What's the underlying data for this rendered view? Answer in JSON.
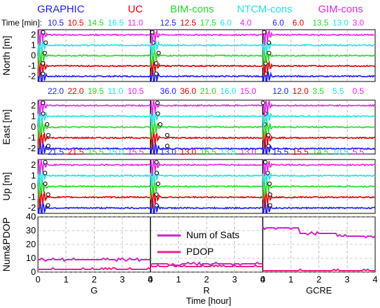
{
  "chart_data": {
    "type": "line",
    "legend": [
      {
        "name": "GRAPHIC",
        "color": "#1a1aff"
      },
      {
        "name": "UC",
        "color": "#e60000"
      },
      {
        "name": "BIM-cons",
        "color": "#22dd22"
      },
      {
        "name": "NTCM-cons",
        "color": "#22e5e5"
      },
      {
        "name": "GIM-cons",
        "color": "#ee22ee"
      }
    ],
    "time_label": "Time [min]:",
    "xlabel": "Time [hour]",
    "x_ticks": [
      0,
      1,
      2,
      3,
      4
    ],
    "xlim": [
      0,
      4
    ],
    "groups": [
      "G",
      "R",
      "GCRE"
    ],
    "panels": [
      {
        "id": "north",
        "ylabel": "North [m]",
        "ylim": [
          -2.5,
          2.5
        ],
        "yticks": [
          -2,
          -1,
          0,
          1,
          2
        ],
        "offsets": [
          -2,
          -1,
          0,
          1,
          2
        ],
        "convergence_minutes": [
          [
            "10.5",
            "10.5",
            "14.5",
            "16.5",
            "11.0"
          ],
          [
            "12.5",
            "12.5",
            "17.5",
            "6.0",
            "4.0"
          ],
          [
            "6.0",
            "6.0",
            "13.5",
            "13.0",
            "3.0"
          ]
        ]
      },
      {
        "id": "east",
        "ylabel": "East [m]",
        "ylim": [
          -2.5,
          2.5
        ],
        "yticks": [
          -2,
          -1,
          0,
          1,
          2
        ],
        "offsets": [
          -2,
          -1,
          0,
          1,
          2
        ],
        "convergence_minutes": [
          [
            "22.0",
            "22.0",
            "19.5",
            "11.0",
            "10.5"
          ],
          [
            "36.0",
            "36.0",
            "21.0",
            "16.0",
            "15.0"
          ],
          [
            "12.0",
            "12.0",
            "3.5",
            "5.5",
            "0.5"
          ]
        ]
      },
      {
        "id": "up",
        "ylabel": "Up [m]",
        "ylim": [
          -2.5,
          2.5
        ],
        "yticks": [
          -2,
          -1,
          0,
          1,
          2
        ],
        "offsets": [
          -2,
          -1,
          0,
          1,
          2
        ],
        "convergence_minutes": [
          [
            "21.5",
            "21.5",
            "15.5",
            "15.0",
            "15.5"
          ],
          [
            "13.0",
            "13.0",
            "16.5",
            "13.5",
            "13.0"
          ],
          [
            "15.5",
            "15.5",
            "14.5",
            "10.5",
            "5.5"
          ]
        ]
      },
      {
        "id": "numpdop",
        "ylabel": "Num&PDOP",
        "ylim": [
          0,
          40
        ],
        "yticks": [
          0,
          10,
          20,
          30,
          40
        ],
        "series": [
          {
            "name": "Num of Sats",
            "color": "#cc22cc"
          },
          {
            "name": "PDOP",
            "color": "#ee2288"
          }
        ],
        "values": {
          "G": {
            "sats": 9,
            "pdop": 2
          },
          "R": {
            "sats": 6,
            "pdop": 4
          },
          "GCRE": {
            "sats": [
              32,
              28,
              26
            ],
            "pdop": 1
          }
        }
      }
    ]
  }
}
